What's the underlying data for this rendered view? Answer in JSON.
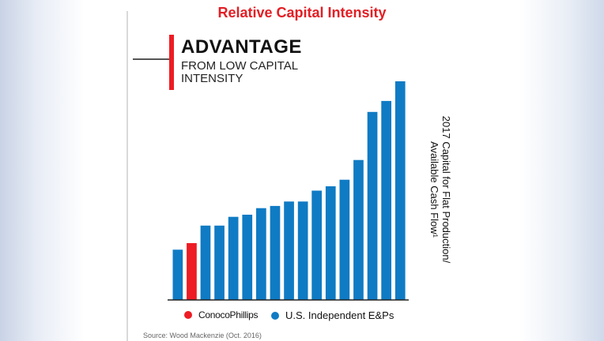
{
  "title": "Relative Capital Intensity",
  "callout": {
    "heading": "ADVANTAGE",
    "subheading_line1": "FROM LOW CAPITAL",
    "subheading_line2": "INTENSITY"
  },
  "legend": {
    "items": [
      {
        "label": "ConocoPhillips",
        "color": "#ee1c24"
      },
      {
        "label": "U.S. Independent E&Ps",
        "color": "#0f7bc4"
      }
    ]
  },
  "source": "Source: Wood Mackenzie (Oct. 2016)",
  "chart_data": {
    "type": "bar",
    "title": "Relative Capital Intensity",
    "ylabel_line1": "2017 Capital for Flat Production/",
    "ylabel_line2": "Available Cash Flow¹",
    "xlabel": "",
    "ylim": [
      0,
      100
    ],
    "grid": false,
    "legend_position": "bottom",
    "values": [
      23,
      26,
      34,
      34,
      38,
      39,
      42,
      43,
      45,
      45,
      50,
      52,
      55,
      64,
      86,
      91,
      100
    ],
    "colors": [
      "#0f7bc4",
      "#ee1c24",
      "#0f7bc4",
      "#0f7bc4",
      "#0f7bc4",
      "#0f7bc4",
      "#0f7bc4",
      "#0f7bc4",
      "#0f7bc4",
      "#0f7bc4",
      "#0f7bc4",
      "#0f7bc4",
      "#0f7bc4",
      "#0f7bc4",
      "#0f7bc4",
      "#0f7bc4",
      "#0f7bc4"
    ]
  }
}
